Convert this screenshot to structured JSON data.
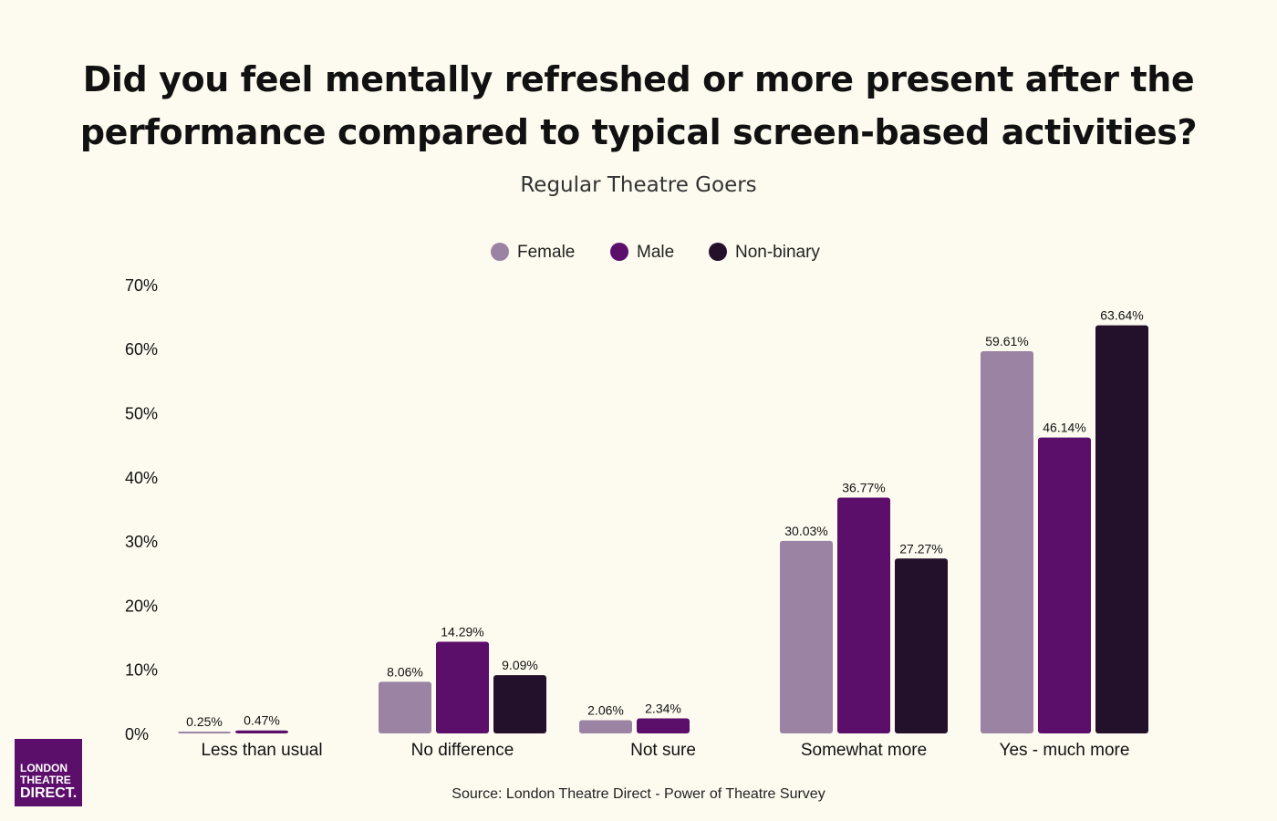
{
  "title_line1": "Did you feel mentally refreshed or more present after the",
  "title_line2": "performance compared to typical screen-based activities?",
  "subtitle": "Regular Theatre Goers",
  "source": "Source: London Theatre Direct - Power of Theatre Survey",
  "logo": {
    "line1": "LONDON",
    "line2": "THEATRE",
    "line3": "DIRECT."
  },
  "colors": {
    "Female": "#9b84a3",
    "Male": "#5c0e6b",
    "Non-binary": "#23102b",
    "background": "#fdfbef"
  },
  "chart_data": {
    "type": "bar",
    "title": "Did you feel mentally refreshed or more present after the performance compared to typical screen-based activities?",
    "subtitle": "Regular Theatre Goers",
    "categories": [
      "Less than usual",
      "No difference",
      "Not sure",
      "Somewhat more",
      "Yes - much more"
    ],
    "series": [
      {
        "name": "Female",
        "values": [
          0.25,
          8.06,
          2.06,
          30.03,
          59.61
        ],
        "labels": [
          "0.25%",
          "8.06%",
          "2.06%",
          "30.03%",
          "59.61%"
        ]
      },
      {
        "name": "Male",
        "values": [
          0.47,
          14.29,
          2.34,
          36.77,
          46.14
        ],
        "labels": [
          "0.47%",
          "14.29%",
          "2.34%",
          "36.77%",
          "46.14%"
        ]
      },
      {
        "name": "Non-binary",
        "values": [
          null,
          9.09,
          null,
          27.27,
          63.64
        ],
        "labels": [
          null,
          "9.09%",
          null,
          "27.27%",
          "63.64%"
        ]
      }
    ],
    "yticks": [
      "0%",
      "10%",
      "20%",
      "30%",
      "40%",
      "50%",
      "60%",
      "70%"
    ],
    "ylim": [
      0,
      70
    ],
    "xlabel": "",
    "ylabel": "",
    "legend_position": "top-center",
    "grid": false
  }
}
